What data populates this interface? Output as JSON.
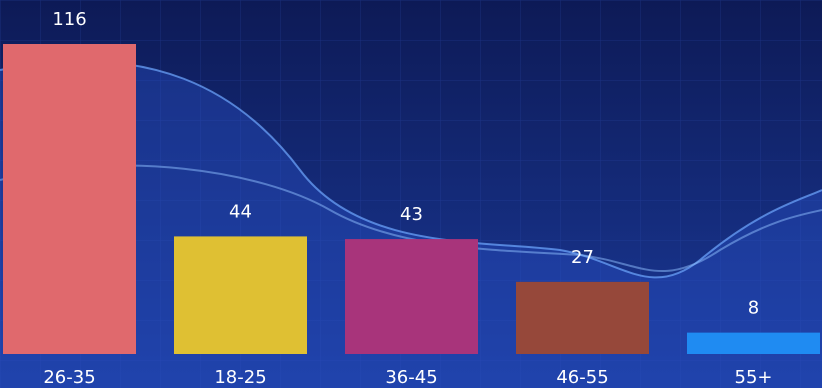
{
  "chart_data": {
    "type": "bar",
    "categories": [
      "26-35",
      "18-25",
      "36-45",
      "46-55",
      "55+"
    ],
    "values": [
      116,
      44,
      43,
      27,
      8
    ],
    "colors": [
      "#e0696d",
      "#dfc033",
      "#a8347b",
      "#96483a",
      "#1f8bf2"
    ]
  }
}
